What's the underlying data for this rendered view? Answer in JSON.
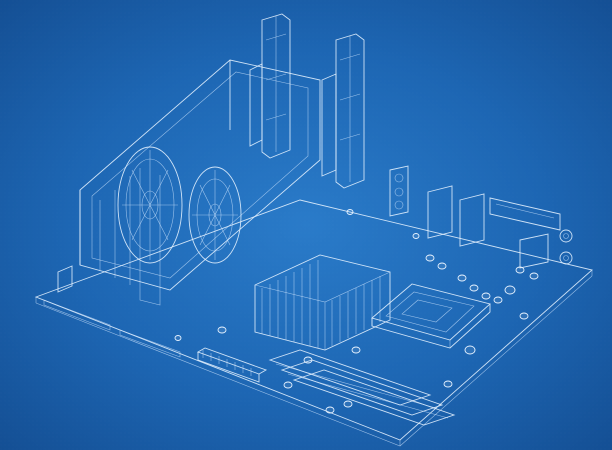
{
  "scene": {
    "subject": "",
    "palette": {
      "background": "#1d66b3",
      "line": "#e6f2ff"
    }
  }
}
